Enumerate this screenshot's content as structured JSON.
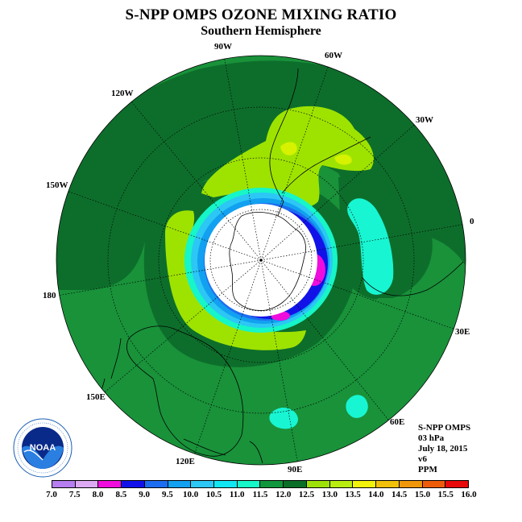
{
  "title": "S-NPP OMPS OZONE MIXING RATIO",
  "subtitle": "Southern Hemisphere",
  "map": {
    "projection": "south polar stereographic",
    "longitude_labels": [
      "90W",
      "60W",
      "30W",
      "0",
      "30E",
      "60E",
      "90E",
      "120E",
      "150E",
      "180",
      "150W",
      "120W"
    ],
    "colors": {
      "background_field": "#19923a",
      "dark_band": "#0d6e2b",
      "light_green": "#9ee300",
      "yellow_green": "#d6f200",
      "cyan": "#18f5d2",
      "light_blue": "#10c8f0",
      "blue": "#1f4cff",
      "deep_blue": "#0a0ef0",
      "magenta": "#f20ce8",
      "no_data": "#ffffff"
    }
  },
  "info": {
    "instrument": "S-NPP OMPS",
    "level": "03 hPa",
    "date": "July 18, 2015",
    "version": "v6",
    "units": "PPM"
  },
  "logo": {
    "text": "NOAA",
    "ring_text": "NATIONAL OCEANIC AND ATMOSPHERIC ADMINISTRATION · U.S. DEPARTMENT OF COMMERCE"
  },
  "colorbar": {
    "labels": [
      "7.0",
      "7.5",
      "8.0",
      "8.5",
      "9.0",
      "9.5",
      "10.0",
      "10.5",
      "11.0",
      "11.5",
      "12.0",
      "12.5",
      "13.0",
      "13.5",
      "14.0",
      "14.5",
      "15.0",
      "15.5",
      "16.0"
    ],
    "colors": [
      "#b67ef0",
      "#dca9f2",
      "#ee0ddd",
      "#1212e8",
      "#1c6df0",
      "#12a0f0",
      "#2cc7f5",
      "#12e6f2",
      "#16f6c8",
      "#10963c",
      "#0a6e26",
      "#9ee10a",
      "#b9ec10",
      "#f2f20a",
      "#f0c00a",
      "#f0960a",
      "#ee5c0a",
      "#e80a0a",
      "#8a5a3e"
    ]
  }
}
